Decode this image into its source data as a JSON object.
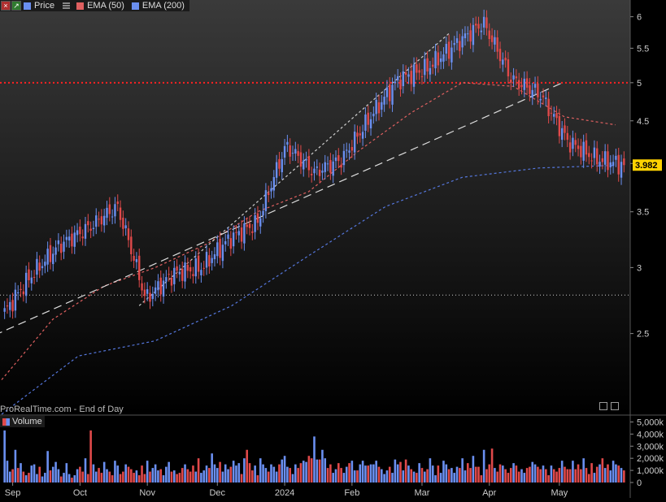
{
  "legend": {
    "items": [
      {
        "label": "Price",
        "color": "#6a8ff0"
      },
      {
        "label": "EMA (50)",
        "color": "#e06060"
      },
      {
        "label": "EMA (200)",
        "color": "#6a8ff0"
      }
    ],
    "icons": [
      "close-icon",
      "expand-icon"
    ]
  },
  "volume_legend": "Volume",
  "watermark": "ProRealTime.com - End of Day",
  "last_price_label": "3.982",
  "colors": {
    "background_top": "#3a3a3a",
    "background_bottom": "#000000",
    "up": "#6a8ff0",
    "down": "#e0494a",
    "ema50": "#e06060",
    "ema200": "#5577dd",
    "resistance": "#ff2222",
    "last_price_bg": "#ffd200"
  },
  "chart_data": [
    {
      "type": "candlestick",
      "title": "",
      "scale": "log",
      "ylim": [
        2.0,
        6.2
      ],
      "yticks": [
        "2.5",
        "3",
        "3.5",
        "4",
        "4.5",
        "5",
        "5.5",
        "6"
      ],
      "xtick_labels": [
        "Sep",
        "Oct",
        "Nov",
        "Dec",
        "2024",
        "Feb",
        "Mar",
        "Apr",
        "May"
      ],
      "close_path": [
        [
          "Sep",
          2.65
        ],
        [
          "Sep",
          2.95
        ],
        [
          "Sep",
          3.2
        ],
        [
          "Sep",
          3.35
        ],
        [
          "Oct",
          3.55
        ],
        [
          "Oct",
          2.75
        ],
        [
          "Oct",
          2.95
        ],
        [
          "Nov",
          3.0
        ],
        [
          "Nov",
          3.25
        ],
        [
          "Dec",
          3.4
        ],
        [
          "Dec",
          4.2
        ],
        [
          "Dec",
          3.9
        ],
        [
          "2024",
          4.05
        ],
        [
          "2024",
          4.55
        ],
        [
          "Feb",
          5.05
        ],
        [
          "Feb",
          5.2
        ],
        [
          "Feb",
          5.55
        ],
        [
          "Mar",
          5.9
        ],
        [
          "Mar",
          5.05
        ],
        [
          "Apr",
          4.85
        ],
        [
          "Apr",
          4.25
        ],
        [
          "May",
          4.05
        ],
        [
          "May",
          3.982
        ]
      ],
      "series": [
        {
          "name": "Price",
          "last": 3.982
        },
        {
          "name": "EMA (50)",
          "values": [
            2.2,
            2.6,
            2.85,
            3.0,
            3.2,
            3.5,
            3.7,
            4.15,
            4.6,
            5.0,
            4.95,
            4.55,
            4.45
          ]
        },
        {
          "name": "EMA (200)",
          "values": [
            2.0,
            2.35,
            2.45,
            2.7,
            3.1,
            3.55,
            3.85,
            3.95,
            3.98
          ]
        }
      ],
      "horizontal_lines": [
        {
          "value": 5.0,
          "style": "dotted",
          "color": "#ff2222"
        },
        {
          "value": 2.78,
          "style": "dotted",
          "color": "#cccccc"
        }
      ],
      "trendlines": [
        {
          "style": "dashed",
          "from": [
            "Sep",
            2.28
          ],
          "to": [
            "Apr",
            5.0
          ]
        },
        {
          "style": "dashed",
          "from": [
            "Nov",
            2.7
          ],
          "to": [
            "Mar",
            5.75
          ]
        }
      ]
    },
    {
      "type": "bar",
      "title": "Volume",
      "ylim": [
        0,
        5500
      ],
      "yticks": [
        "0",
        "1,000k",
        "2,000k",
        "3,000k",
        "4,000k",
        "5,000k"
      ],
      "note": "daily volume in thousands",
      "values": [
        4300,
        1800,
        900,
        1100,
        2700,
        1200,
        1600,
        900,
        600,
        800,
        1400,
        1500,
        700,
        1300,
        500,
        800,
        2600,
        1000,
        1300,
        1700,
        1100,
        500,
        800,
        1600,
        700,
        400,
        600,
        1100,
        1300,
        900,
        2000,
        700,
        4300,
        1500,
        900,
        1200,
        800,
        1700,
        1100,
        900,
        600,
        1800,
        1400,
        700,
        900,
        1500,
        1300,
        1100,
        800,
        1000,
        600,
        1400,
        700,
        1800,
        900,
        1200,
        1500,
        1000,
        1100,
        600,
        1300,
        1700,
        900,
        1000,
        700,
        800,
        1200,
        1500,
        1100,
        900,
        1400,
        900,
        2000,
        800,
        1000,
        1400,
        1200,
        2400,
        1500,
        1200,
        1700,
        900,
        1500,
        1100,
        1300,
        1800,
        1400,
        1600,
        700,
        2000,
        2700,
        1600,
        1000,
        1400,
        600,
        2000,
        1500,
        1200,
        900,
        1500,
        1300,
        900,
        1500,
        1900,
        2200,
        1300,
        1200,
        700,
        1500,
        1200,
        1600,
        1800,
        1700,
        2200,
        2000,
        3800,
        1900,
        1900,
        2700,
        2000,
        1200,
        1500,
        800,
        1100,
        1600,
        1200,
        800,
        1300,
        1600,
        1800,
        1000,
        1000,
        1500,
        1800,
        1400,
        1400,
        1500,
        1500,
        1800,
        1300,
        1100,
        700,
        1000,
        1300,
        800,
        1900,
        1500,
        1700,
        1000,
        1900,
        1400,
        1100,
        900,
        800,
        1600,
        1200,
        900,
        1100,
        2000,
        1400,
        600,
        1400,
        800,
        1800,
        1500,
        1100,
        1200,
        800,
        1300,
        1200,
        2000,
        1000,
        1600,
        1200,
        2200,
        1300,
        1300,
        600,
        2700,
        1100,
        1500,
        2800,
        1200,
        900,
        1500,
        1400,
        1100,
        800,
        1200,
        1600,
        1400,
        900,
        1100,
        800,
        1200,
        1300,
        1700,
        1500,
        1300,
        1100,
        1400,
        1100,
        600,
        1400,
        1100,
        900,
        1200,
        1800,
        1300,
        1100,
        1100,
        1800,
        1100,
        1500,
        1100,
        2000,
        1200,
        700,
        1600,
        800,
        1300,
        1500,
        2000,
        1200,
        1500,
        1000,
        1800,
        1500,
        1400,
        1200,
        1000
      ]
    }
  ]
}
